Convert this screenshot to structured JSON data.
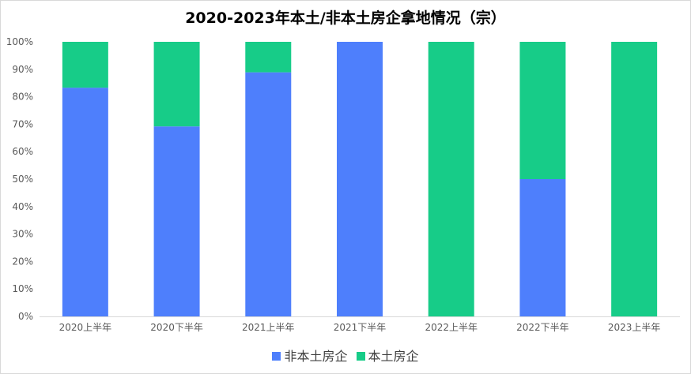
{
  "chart_data": {
    "type": "bar",
    "stacked": true,
    "percent": true,
    "title": "2020-2023年本土/非本土房企拿地情况（宗）",
    "categories": [
      "2020上半年",
      "2020下半年",
      "2021上半年",
      "2021下半年",
      "2022上半年",
      "2022下半年",
      "2023上半年"
    ],
    "series": [
      {
        "name": "非本土房企",
        "color": "#4e7ffc",
        "values": [
          83.3,
          69.2,
          88.9,
          100,
          0,
          50,
          0
        ]
      },
      {
        "name": "本土房企",
        "color": "#17cc88",
        "values": [
          16.7,
          30.8,
          11.1,
          0,
          100,
          50,
          100
        ]
      }
    ],
    "yticks": [
      "0%",
      "10%",
      "20%",
      "30%",
      "40%",
      "50%",
      "60%",
      "70%",
      "80%",
      "90%",
      "100%"
    ],
    "ylim": [
      0,
      100
    ],
    "grid": false,
    "legend_position": "bottom"
  }
}
